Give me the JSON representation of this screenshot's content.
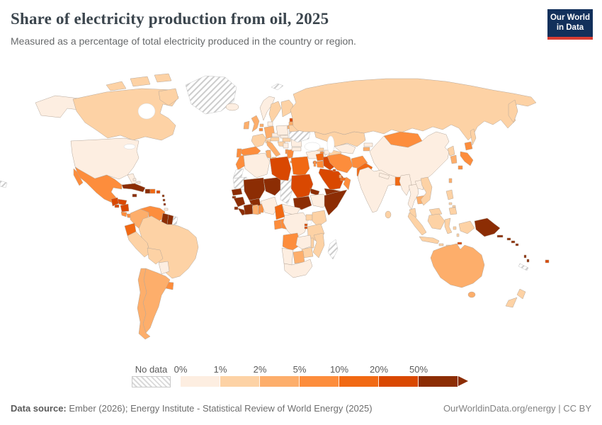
{
  "header": {
    "title": "Share of electricity production from oil, 2025",
    "subtitle": "Measured as a percentage of total electricity produced in the country or region.",
    "logo_line1": "Our World",
    "logo_line2": "in Data",
    "logo_bg": "#12305b",
    "logo_accent": "#d93d32"
  },
  "footer": {
    "sources_label": "Data source:",
    "sources": " Ember (2026); Energy Institute - Statistical Review of World Energy (2025)",
    "link": "OurWorldinData.org/energy | CC BY"
  },
  "chart_data": {
    "type": "heatmap",
    "subtype": "choropleth-world-map",
    "title": "Share of electricity production from oil, 2025",
    "unit": "%",
    "ocean_color": "#ffffff",
    "border_color": "#b5a79a",
    "legend": {
      "no_data_label": "No data",
      "tick_labels": [
        "0%",
        "1%",
        "2%",
        "5%",
        "10%",
        "20%",
        "50%"
      ],
      "bins": [
        {
          "range": "0-1%",
          "color": "#fdeee1"
        },
        {
          "range": "1-2%",
          "color": "#fdd2a5"
        },
        {
          "range": "2-5%",
          "color": "#fdae6b"
        },
        {
          "range": "5-10%",
          "color": "#fd8d3c"
        },
        {
          "range": "10-20%",
          "color": "#f16913"
        },
        {
          "range": "20-50%",
          "color": "#d94801"
        },
        {
          "range": "50%+",
          "color": "#8c2d04"
        }
      ]
    },
    "countries": {
      "united-states": "0-1%",
      "canada": "1-2%",
      "greenland": "no-data",
      "iceland": "0-1%",
      "mexico": "5-10%",
      "guatemala": "20-50%",
      "honduras": "20-50%",
      "el-salvador": "20-50%",
      "nicaragua": "20-50%",
      "costa-rica": "5-10%",
      "panama": "5-10%",
      "cuba": "50%+",
      "jamaica": "50%+",
      "haiti": "50%+",
      "dominican-republic": "10-20%",
      "puerto-rico": "20-50%",
      "bahamas": "0-1%",
      "lesser-antilles": "50%+",
      "trinidad-and-tobago": "0-1%",
      "colombia": "2-5%",
      "venezuela": "5-10%",
      "guyana": "50%+",
      "suriname": "50%+",
      "french-guiana": "no-data",
      "ecuador": "10-20%",
      "peru": "1-2%",
      "brazil": "1-2%",
      "bolivia": "1-2%",
      "paraguay": "0-1%",
      "uruguay": "5-10%",
      "argentina": "2-5%",
      "chile": "2-5%",
      "norway": "0-1%",
      "sweden": "1-2%",
      "finland": "1-2%",
      "denmark": "0-1%",
      "estonia": "20-50%",
      "latvia": "2-5%",
      "lithuania": "2-5%",
      "united-kingdom": "2-5%",
      "ireland": "2-5%",
      "france": "1-2%",
      "spain": "5-10%",
      "portugal": "5-10%",
      "germany": "2-5%",
      "netherlands": "2-5%",
      "belgium": "5-10%",
      "switzerland": "1-2%",
      "austria": "1-2%",
      "czechia": "0-1%",
      "slovakia": "0-1%",
      "poland": "0-1%",
      "hungary": "1-2%",
      "croatia": "1-2%",
      "serbia": "0-1%",
      "albania": "5-10%",
      "italy": "2-5%",
      "greece": "5-10%",
      "romania": "0-1%",
      "bulgaria": "0-1%",
      "moldova": "20-50%",
      "ukraine": "no-data",
      "belarus": "1-2%",
      "russia": "1-2%",
      "turkey": "0-1%",
      "cyprus": "20-50%",
      "georgia": "1-2%",
      "armenia": "5-10%",
      "azerbaijan": "0-1%",
      "svalbard": "no-data",
      "kazakhstan": "1-2%",
      "uzbekistan": "0-1%",
      "turkmenistan": "1-2%",
      "kyrgyzstan": "0-1%",
      "tajikistan": "2-5%",
      "syria": "10-20%",
      "israel": "5-10%",
      "jordan": "5-10%",
      "iraq": "20-50%",
      "saudi-arabia": "20-50%",
      "kuwait": "20-50%",
      "qatar": "2-5%",
      "united-arab-emirates": "10-20%",
      "oman": "5-10%",
      "yemen": "50%+",
      "iran": "5-10%",
      "afghanistan": "5-10%",
      "pakistan": "10-20%",
      "morocco": "5-10%",
      "western-sahara": "no-data",
      "algeria": "0-1%",
      "tunisia": "2-5%",
      "libya": "20-50%",
      "egypt": "10-20%",
      "mauritania": "no-data",
      "senegal": "50%+",
      "guinea-bissau": "50%+",
      "guinea": "50%+",
      "sierra-leone": "50%+",
      "liberia": "50%+",
      "cote-divoire": "50%+",
      "ghana": "2-5%",
      "togo": "5-10%",
      "benin": "5-10%",
      "burkina-faso": "50%+",
      "mali": "50%+",
      "niger": "50%+",
      "nigeria": "0-1%",
      "chad": "no-data",
      "sudan": "20-50%",
      "south-sudan": "50%+",
      "eritrea": "50%+",
      "djibouti": "50%+",
      "ethiopia": "0-1%",
      "somalia": "50%+",
      "kenya": "1-2%",
      "uganda": "1-2%",
      "rwanda": "20-50%",
      "burundi": "20-50%",
      "tanzania": "1-2%",
      "cameroon": "10-20%",
      "central-african-republic": "0-1%",
      "gabon": "5-10%",
      "congo": "5-10%",
      "dr-congo": "0-1%",
      "angola": "5-10%",
      "zambia": "0-1%",
      "malawi": "1-2%",
      "mozambique": "1-2%",
      "zimbabwe": "1-2%",
      "botswana": "2-5%",
      "namibia": "0-1%",
      "south-africa": "0-1%",
      "madagascar": "no-data",
      "india": "0-1%",
      "nepal": "0-1%",
      "sri-lanka": "1-2%",
      "bangladesh": "10-20%",
      "myanmar": "0-1%",
      "thailand": "0-1%",
      "laos": "0-1%",
      "cambodia": "2-5%",
      "vietnam": "1-2%",
      "malaysia": "1-2%",
      "indonesia": "1-2%",
      "philippines": "1-2%",
      "taiwan": "2-5%",
      "china": "0-1%",
      "mongolia": "5-10%",
      "north-korea": "1-2%",
      "south-korea": "2-5%",
      "japan": "5-10%",
      "papua-new-guinea": "50%+",
      "timor-leste": "20-50%",
      "solomon-islands": "50%+",
      "vanuatu": "50%+",
      "fiji": "20-50%",
      "new-caledonia": "no-data",
      "australia": "2-5%",
      "new-zealand": "1-2%",
      "pacific-fragment": "no-data"
    }
  }
}
